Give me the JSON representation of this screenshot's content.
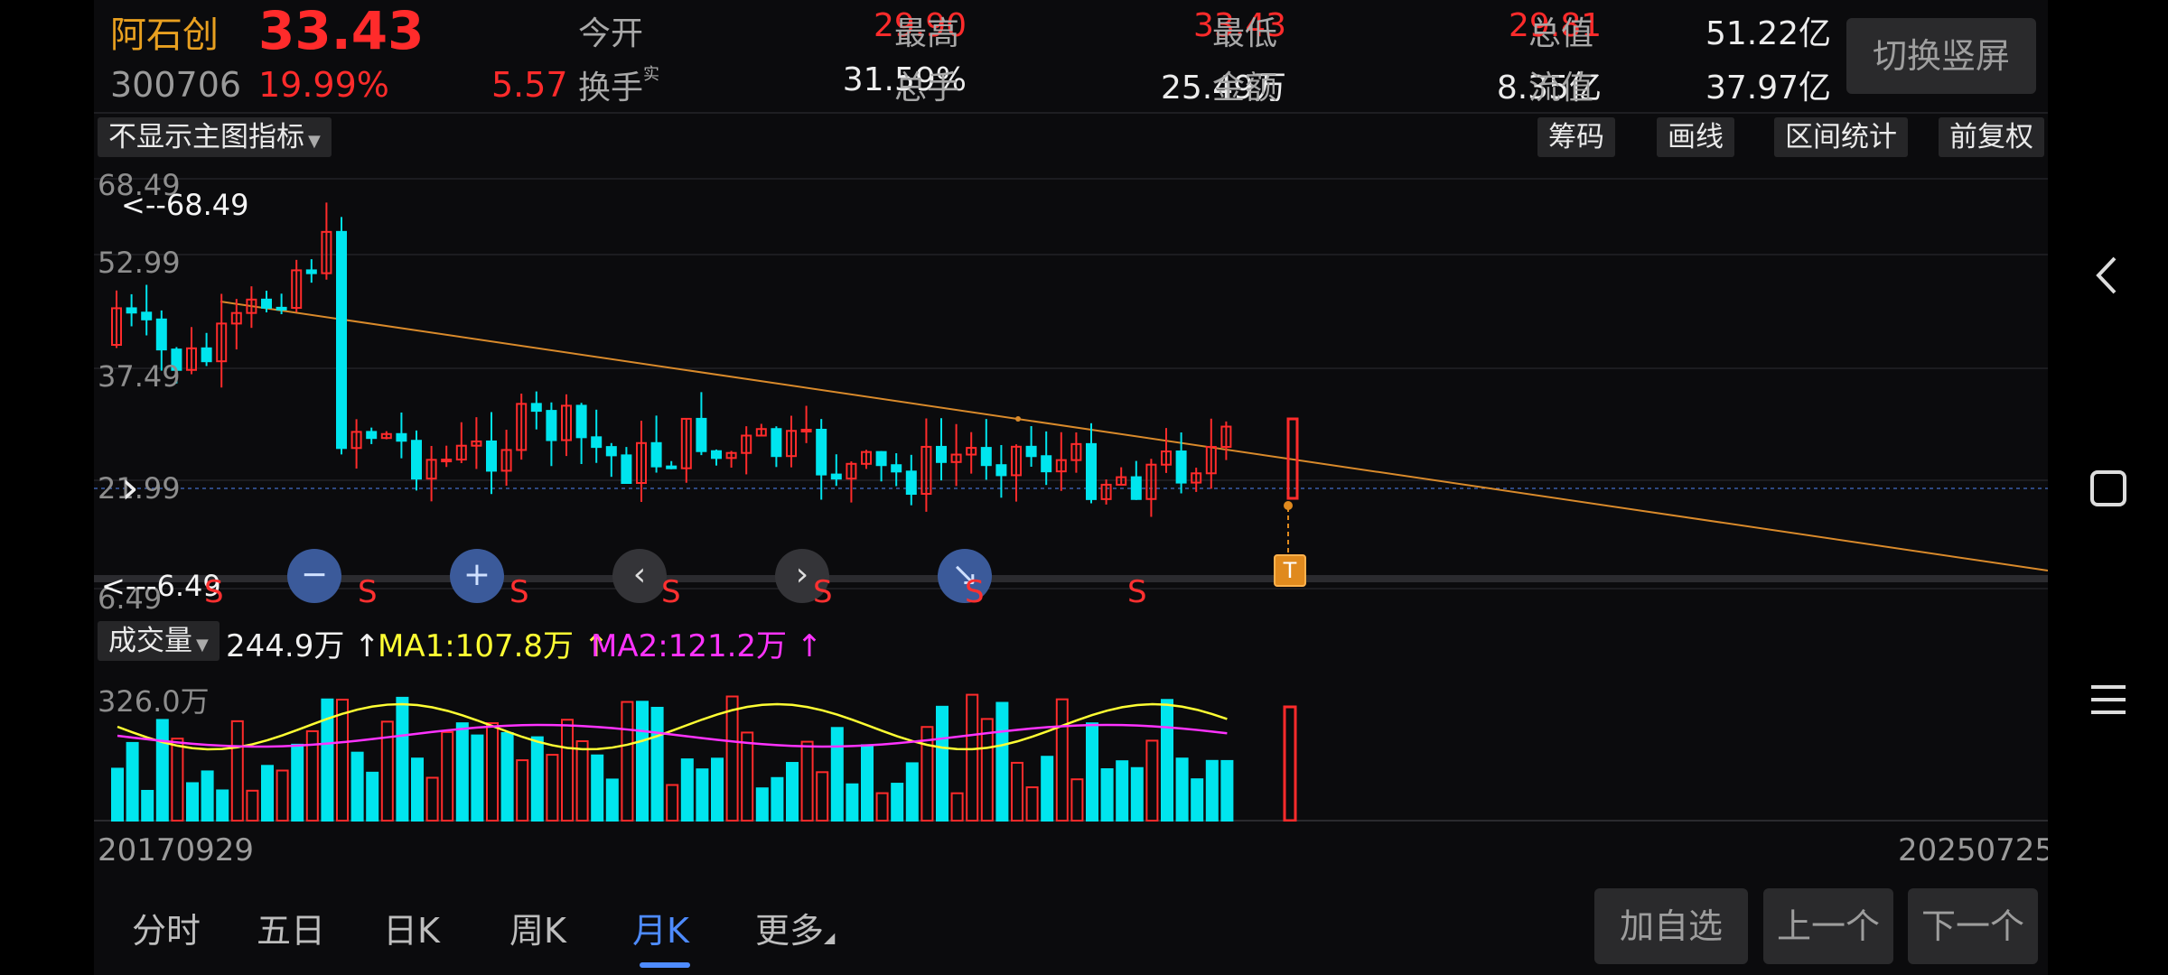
{
  "header": {
    "stock_name": "阿石创",
    "stock_code": "300706",
    "price": "33.43",
    "change_pct": "19.99%",
    "change_abs": "5.57",
    "fields": [
      {
        "label": "今开",
        "value": "29.90",
        "color": "red"
      },
      {
        "label": "最高",
        "value": "33.43",
        "color": "red"
      },
      {
        "label": "最低",
        "value": "29.81",
        "color": "red"
      },
      {
        "label": "总值",
        "value": "51.22亿",
        "color": "white"
      },
      {
        "label": "换手",
        "value": "31.59%",
        "color": "white",
        "sup": "实"
      },
      {
        "label": "总手",
        "value": "25.49万",
        "color": "white"
      },
      {
        "label": "金额",
        "value": "8.35亿",
        "color": "white"
      },
      {
        "label": "流值",
        "value": "37.97亿",
        "color": "white"
      }
    ],
    "switch_button": "切换竖屏"
  },
  "toolbar": {
    "indicator_select": "不显示主图指标",
    "buttons": [
      "筹码",
      "画线",
      "区间统计",
      "前复权"
    ]
  },
  "price_chart": {
    "axis_labels": [
      "68.49",
      "52.99",
      "37.49",
      "21.99",
      "6.49"
    ],
    "max_marker": "<--68.49",
    "min_marker": "<---6.49",
    "collapse_arrow": "›",
    "controls": [
      {
        "name": "zoom-out",
        "glyph": "−"
      },
      {
        "name": "zoom-in",
        "glyph": "+"
      },
      {
        "name": "scroll-left",
        "glyph": "‹"
      },
      {
        "name": "scroll-right",
        "glyph": "›"
      },
      {
        "name": "reset",
        "glyph": "↘"
      }
    ],
    "s_labels": [
      "S",
      "S",
      "S",
      "S",
      "S",
      "S",
      "S"
    ],
    "t_marker": "T"
  },
  "volume": {
    "selector": "成交量",
    "value": "244.9万",
    "ma1": "MA1:107.8万",
    "ma2": "MA2:121.2万",
    "arrow": "↑",
    "scale_label": "326.0万",
    "ma1_color": "#ffff33",
    "ma2_color": "#ff33ff"
  },
  "dates": {
    "start": "20170929",
    "end": "20250725"
  },
  "tabs": [
    {
      "label": "分时",
      "active": false
    },
    {
      "label": "五日",
      "active": false
    },
    {
      "label": "日K",
      "active": false
    },
    {
      "label": "周K",
      "active": false
    },
    {
      "label": "月K",
      "active": true
    },
    {
      "label": "更多",
      "active": false
    }
  ],
  "footer_buttons": [
    "加自选",
    "上一个",
    "下一个"
  ],
  "colors": {
    "up": "#ff2b2b",
    "down": "#00e5ee",
    "trend": "#d98a2b",
    "accent": "#4e8bff"
  },
  "nav_icons": [
    "back-icon",
    "recents-icon",
    "menu-icon"
  ]
}
